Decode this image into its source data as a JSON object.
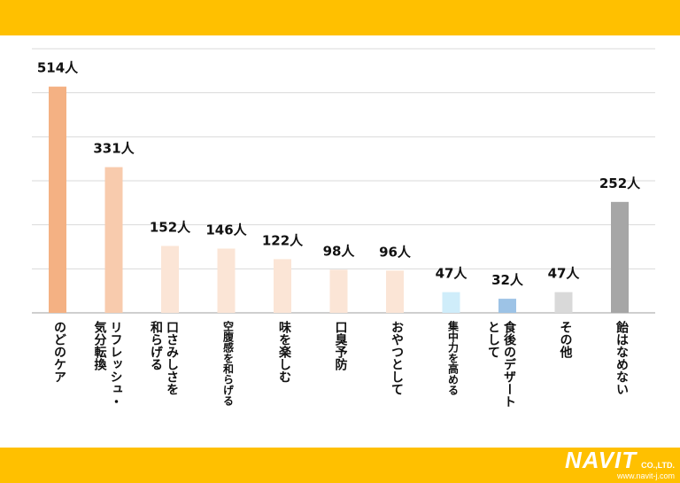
{
  "colors": {
    "band": "#FFC000",
    "grid": "#d9d9d9",
    "axis": "#bfbfbf"
  },
  "brand": {
    "name": "NAVIT",
    "suffix": "CO.,LTD.",
    "url": "www.navit-j.com"
  },
  "chart_data": {
    "type": "bar",
    "ylim": [
      0,
      600
    ],
    "grid": true,
    "categories": [
      "のどのケア",
      "リフレッシュ・\n気分転換",
      "口さみしさを\n和らげる",
      "空腹感を和らげる",
      "味を楽しむ",
      "口臭予防",
      "おやつとして",
      "集中力を高める",
      "食後のデザート\nとして",
      "その他",
      "飴はなめない"
    ],
    "values": [
      514,
      331,
      152,
      146,
      122,
      98,
      96,
      47,
      32,
      47,
      252
    ],
    "value_labels": [
      "514人",
      "331人",
      "152人",
      "146人",
      "122人",
      "98人",
      "96人",
      "47人",
      "32人",
      "47人",
      "252人"
    ],
    "bar_colors": [
      "#F4B183",
      "#F8CBAD",
      "#FBE5D6",
      "#FBE5D6",
      "#FBE5D6",
      "#FBE5D6",
      "#FBE5D6",
      "#CFEDFA",
      "#9DC3E6",
      "#D9D9D9",
      "#A6A6A6"
    ]
  }
}
